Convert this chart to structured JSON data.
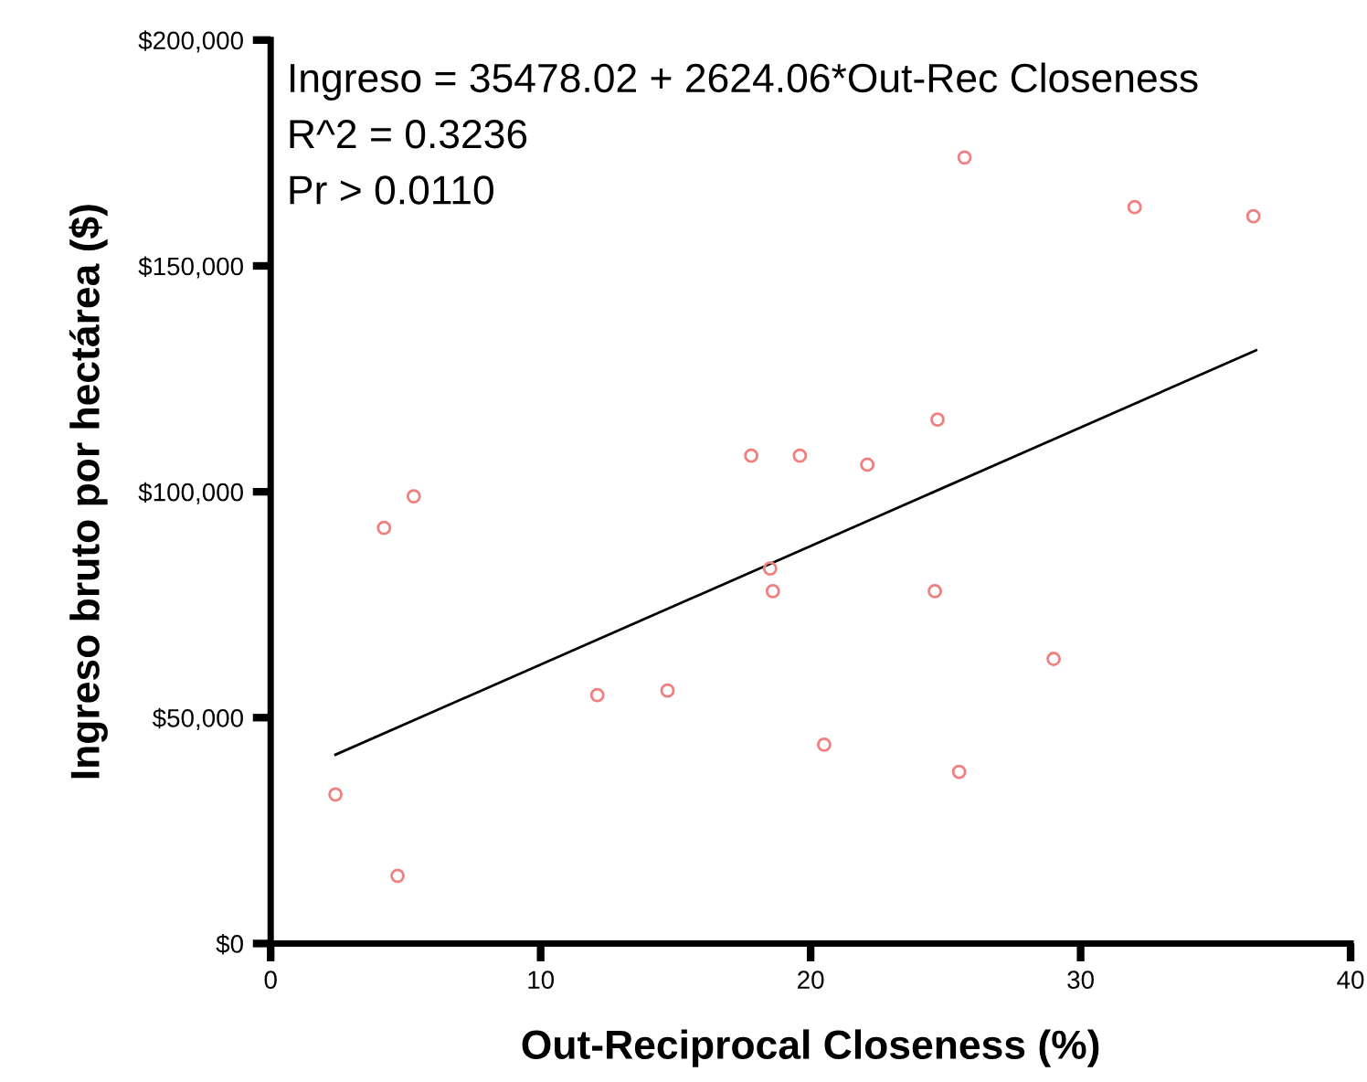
{
  "chart_data": {
    "type": "scatter",
    "xlabel": "Out-Reciprocal Closeness (%)",
    "ylabel": "Ingreso bruto por hectárea ($)",
    "annotations": [
      "Ingreso = 35478.02 + 2624.06*Out-Rec Closeness",
      "R^2 = 0.3236",
      "Pr > 0.0110"
    ],
    "xlim": [
      0,
      40
    ],
    "xticks": [
      0,
      10,
      20,
      30,
      40
    ],
    "ylim": [
      0,
      200000
    ],
    "yticks": [
      {
        "value": 0,
        "label": "$0"
      },
      {
        "value": 50000,
        "label": "$50,000"
      },
      {
        "value": 100000,
        "label": "$100,000"
      },
      {
        "value": 150000,
        "label": "$150,000"
      },
      {
        "value": 200000,
        "label": "$200,000"
      }
    ],
    "grid": false,
    "legend": false,
    "series": [
      {
        "marker": "circle",
        "color": "#f08080",
        "x": [
          2.4,
          4.7,
          4.2,
          5.3,
          12.1,
          14.7,
          17.8,
          19.6,
          18.5,
          18.6,
          20.5,
          22.1,
          24.7,
          24.6,
          25.5,
          25.7,
          29.0,
          32.0,
          36.4
        ],
        "values": [
          33000,
          15000,
          92000,
          99000,
          55000,
          56000,
          108000,
          108000,
          83000,
          78000,
          44000,
          106000,
          116000,
          78000,
          38000,
          174000,
          63000,
          163000,
          161000
        ]
      },
      {
        "type": "line",
        "color": "#000000",
        "x": [
          2.4,
          36.5
        ],
        "values": [
          41800,
          131300
        ],
        "marker": "none"
      }
    ]
  }
}
